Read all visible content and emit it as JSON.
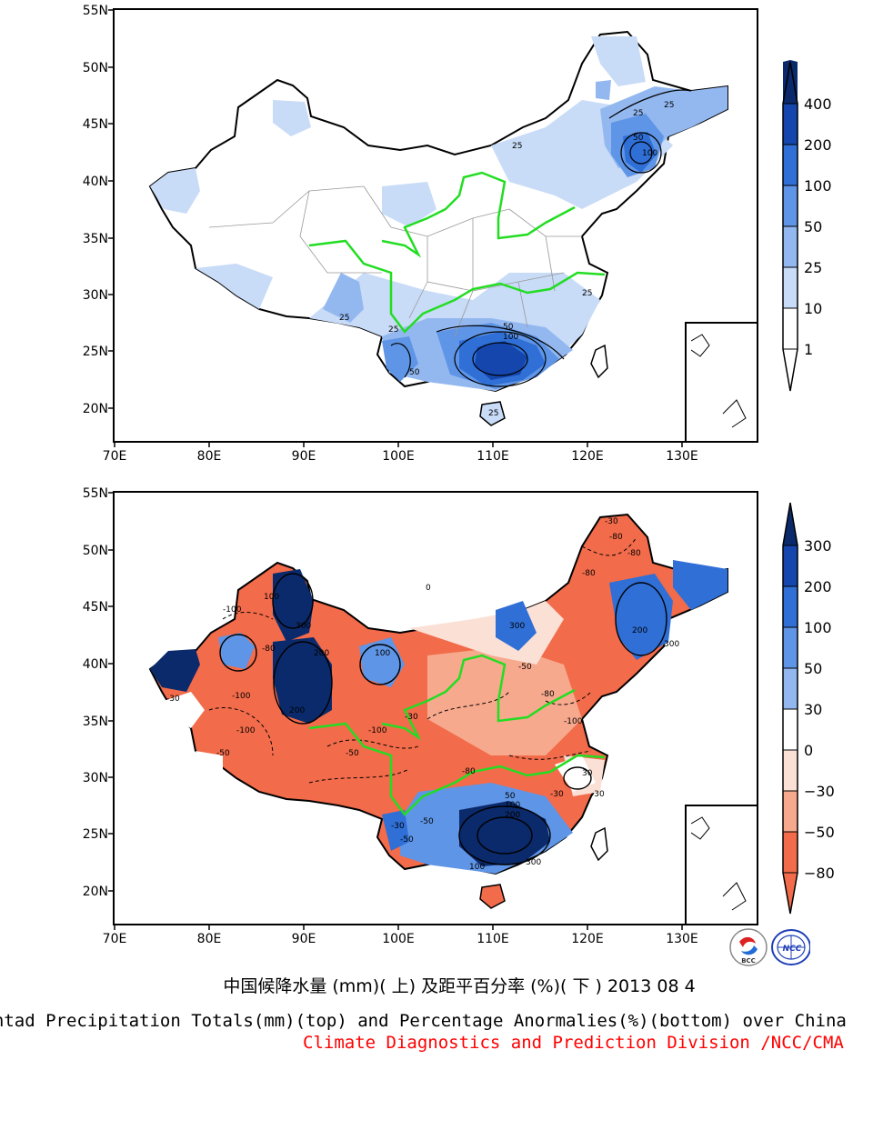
{
  "top_map": {
    "lat_labels": [
      "55N",
      "50N",
      "45N",
      "40N",
      "35N",
      "30N",
      "25N",
      "20N"
    ],
    "lon_labels": [
      "70E",
      "80E",
      "90E",
      "100E",
      "110E",
      "120E",
      "130E"
    ],
    "colorbar": {
      "labels": [
        "400",
        "200",
        "100",
        "50",
        "25",
        "10",
        "1"
      ],
      "colors": [
        "#0b2a6b",
        "#1446ad",
        "#2f6fd6",
        "#5f95e6",
        "#93b8f0",
        "#c8dbf7",
        "#ffffff"
      ]
    },
    "contour_labels": [
      "25",
      "25",
      "25",
      "25",
      "50",
      "100",
      "25",
      "50",
      "100",
      "25",
      "50",
      "25"
    ]
  },
  "bottom_map": {
    "lat_labels": [
      "55N",
      "50N",
      "45N",
      "40N",
      "35N",
      "30N",
      "25N",
      "20N"
    ],
    "lon_labels": [
      "70E",
      "80E",
      "90E",
      "100E",
      "110E",
      "120E",
      "130E"
    ],
    "colorbar": {
      "labels": [
        "300",
        "200",
        "100",
        "50",
        "30",
        "0",
        "−30",
        "−50",
        "−80"
      ],
      "colors": [
        "#0b2a6b",
        "#1446ad",
        "#2f6fd6",
        "#5f95e6",
        "#93b8f0",
        "#ffffff",
        "#fbe0d6",
        "#f7a98d",
        "#f26b4a"
      ]
    },
    "contour_labels": [
      "-100",
      "100",
      "300",
      "200",
      "-100",
      "-80",
      "-100",
      "100",
      "200",
      "300",
      "-50",
      "-80",
      "-30",
      "-50",
      "-100",
      "200",
      "300",
      "-80",
      "-80",
      "-30",
      "-100",
      "-80",
      "-50",
      "-30",
      "200",
      "100",
      "50",
      "300",
      "100",
      "-30",
      "30",
      "0",
      "-30",
      "-50",
      "-80",
      "-30",
      "-50"
    ]
  },
  "logos": {
    "left": "BCC",
    "right": "NCC"
  },
  "title_zh": "中国候降水量 (mm)( 上) 及距平百分率 (%)( 下 ) 2013 08 4",
  "title_en": "Pentad Precipitation Totals(mm)(top) and Percentage Anormalies(%)(bottom) over China",
  "title_division": "Climate Diagnostics and Prediction Division /NCC/CMA",
  "colors": {
    "frame": "#000000",
    "river": "#22dd22",
    "division": "#ff0000"
  }
}
